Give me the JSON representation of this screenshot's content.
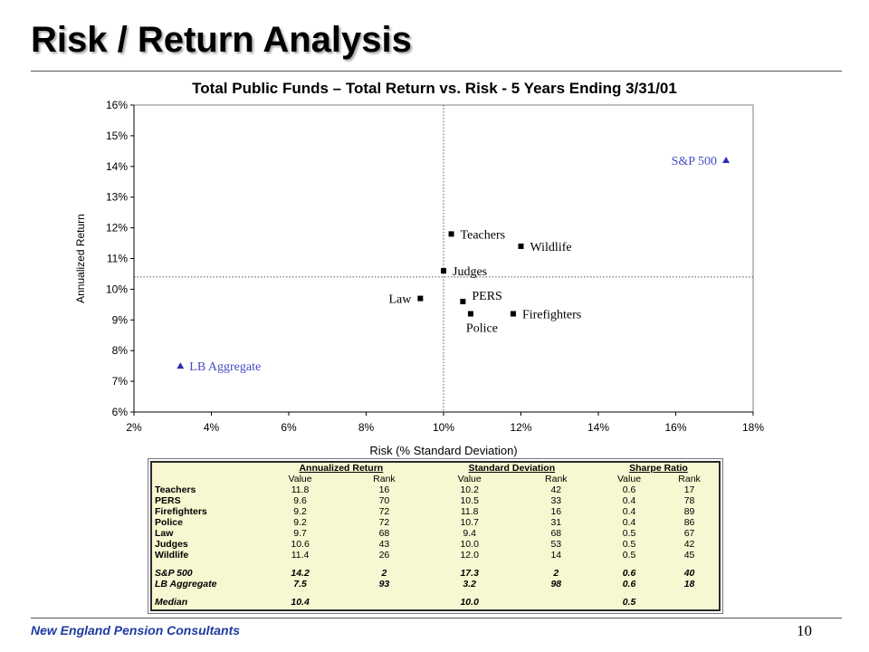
{
  "slide": {
    "title": "Risk / Return Analysis",
    "footer_left": "New England Pension Consultants",
    "page_number": "10"
  },
  "colors": {
    "fund": "#000000",
    "index": "#2c2cb8",
    "index_label": "#4a4ac4",
    "grid": "#555555"
  },
  "chart_data": {
    "type": "scatter",
    "title": "Total Public Funds – Total Return vs. Risk - 5 Years Ending 3/31/01",
    "xlabel": "Risk (% Standard Deviation)",
    "ylabel": "Annualized Return",
    "xlim": [
      2,
      18
    ],
    "ylim": [
      6,
      16
    ],
    "xticks": [
      2,
      4,
      6,
      8,
      10,
      12,
      14,
      16,
      18
    ],
    "yticks": [
      6,
      7,
      8,
      9,
      10,
      11,
      12,
      13,
      14,
      15,
      16
    ],
    "tick_suffix": "%",
    "grid": false,
    "median_lines": {
      "x": 10.0,
      "y": 10.4
    },
    "points": [
      {
        "name": "Teachers",
        "x": 10.2,
        "y": 11.8,
        "kind": "fund",
        "label_side": "right"
      },
      {
        "name": "PERS",
        "x": 10.5,
        "y": 9.6,
        "kind": "fund",
        "label_side": "right-up"
      },
      {
        "name": "Firefighters",
        "x": 11.8,
        "y": 9.2,
        "kind": "fund",
        "label_side": "right"
      },
      {
        "name": "Police",
        "x": 10.7,
        "y": 9.2,
        "kind": "fund",
        "label_side": "below"
      },
      {
        "name": "Law",
        "x": 9.4,
        "y": 9.7,
        "kind": "fund",
        "label_side": "left"
      },
      {
        "name": "Judges",
        "x": 10.0,
        "y": 10.6,
        "kind": "fund",
        "label_side": "right"
      },
      {
        "name": "Wildlife",
        "x": 12.0,
        "y": 11.4,
        "kind": "fund",
        "label_side": "right"
      },
      {
        "name": "S&P 500",
        "x": 17.3,
        "y": 14.2,
        "kind": "index",
        "label_side": "left"
      },
      {
        "name": "LB Aggregate",
        "x": 3.2,
        "y": 7.5,
        "kind": "index",
        "label_side": "right"
      }
    ]
  },
  "table": {
    "groups": [
      "Annualized Return",
      "Standard Deviation",
      "Sharpe Ratio"
    ],
    "subheaders": [
      "Value",
      "Rank",
      "Value",
      "Rank",
      "Value",
      "Rank"
    ],
    "funds": [
      {
        "name": "Teachers",
        "values": [
          "11.8",
          "16",
          "10.2",
          "42",
          "0.6",
          "17"
        ]
      },
      {
        "name": "PERS",
        "values": [
          "9.6",
          "70",
          "10.5",
          "33",
          "0.4",
          "78"
        ]
      },
      {
        "name": "Firefighters",
        "values": [
          "9.2",
          "72",
          "11.8",
          "16",
          "0.4",
          "89"
        ]
      },
      {
        "name": "Police",
        "values": [
          "9.2",
          "72",
          "10.7",
          "31",
          "0.4",
          "86"
        ]
      },
      {
        "name": "Law",
        "values": [
          "9.7",
          "68",
          "9.4",
          "68",
          "0.5",
          "67"
        ]
      },
      {
        "name": "Judges",
        "values": [
          "10.6",
          "43",
          "10.0",
          "53",
          "0.5",
          "42"
        ]
      },
      {
        "name": "Wildlife",
        "values": [
          "11.4",
          "26",
          "12.0",
          "14",
          "0.5",
          "45"
        ]
      }
    ],
    "indices": [
      {
        "name": "S&P 500",
        "values": [
          "14.2",
          "2",
          "17.3",
          "2",
          "0.6",
          "40"
        ]
      },
      {
        "name": "LB Aggregate",
        "values": [
          "7.5",
          "93",
          "3.2",
          "98",
          "0.6",
          "18"
        ]
      }
    ],
    "median": {
      "name": "Median",
      "values": [
        "10.4",
        "",
        "10.0",
        "",
        "0.5",
        ""
      ]
    }
  }
}
